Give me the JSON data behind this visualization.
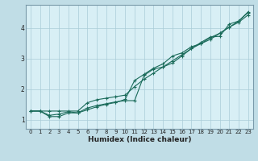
{
  "xlabel": "Humidex (Indice chaleur)",
  "bg_color": "#d8eff5",
  "grid_color": "#aaccd8",
  "line_color": "#1a6b5a",
  "spine_color": "#7a9aaa",
  "xlim": [
    -0.5,
    23.5
  ],
  "ylim": [
    0.7,
    4.75
  ],
  "xticks": [
    0,
    1,
    2,
    3,
    4,
    5,
    6,
    7,
    8,
    9,
    10,
    11,
    12,
    13,
    14,
    15,
    16,
    17,
    18,
    19,
    20,
    21,
    22,
    23
  ],
  "yticks": [
    1,
    2,
    3,
    4
  ],
  "series1_x": [
    0,
    1,
    2,
    3,
    4,
    5,
    6,
    7,
    8,
    9,
    10,
    11,
    12,
    13,
    14,
    15,
    16,
    17,
    18,
    19,
    20,
    21,
    22,
    23
  ],
  "series1_y": [
    1.28,
    1.28,
    1.1,
    1.1,
    1.22,
    1.22,
    1.38,
    1.46,
    1.52,
    1.58,
    1.62,
    1.62,
    2.45,
    2.65,
    2.72,
    2.85,
    3.08,
    3.32,
    3.52,
    3.7,
    3.72,
    4.12,
    4.22,
    4.52
  ],
  "series2_x": [
    0,
    1,
    2,
    3,
    4,
    5,
    6,
    7,
    8,
    9,
    10,
    11,
    12,
    13,
    14,
    15,
    16,
    17,
    18,
    19,
    20,
    21,
    22,
    23
  ],
  "series2_y": [
    1.28,
    1.28,
    1.14,
    1.18,
    1.26,
    1.22,
    1.32,
    1.42,
    1.5,
    1.56,
    1.66,
    2.28,
    2.48,
    2.68,
    2.82,
    3.08,
    3.18,
    3.38,
    3.48,
    3.62,
    3.82,
    4.02,
    4.18,
    4.42
  ],
  "series3_x": [
    0,
    1,
    2,
    3,
    4,
    5,
    6,
    7,
    8,
    9,
    10,
    11,
    12,
    13,
    14,
    15,
    16,
    17,
    18,
    19,
    20,
    21,
    22,
    23
  ],
  "series3_y": [
    1.28,
    1.28,
    1.28,
    1.28,
    1.28,
    1.28,
    1.55,
    1.65,
    1.7,
    1.75,
    1.8,
    2.08,
    2.32,
    2.52,
    2.72,
    2.92,
    3.12,
    3.32,
    3.48,
    3.68,
    3.82,
    4.02,
    4.22,
    4.5
  ],
  "marker": "+",
  "marker_size": 3.5,
  "line_width": 0.8,
  "tick_fontsize": 5.0,
  "xlabel_fontsize": 6.5,
  "tick_color": "#222222",
  "outer_bg": "#c0dde6"
}
